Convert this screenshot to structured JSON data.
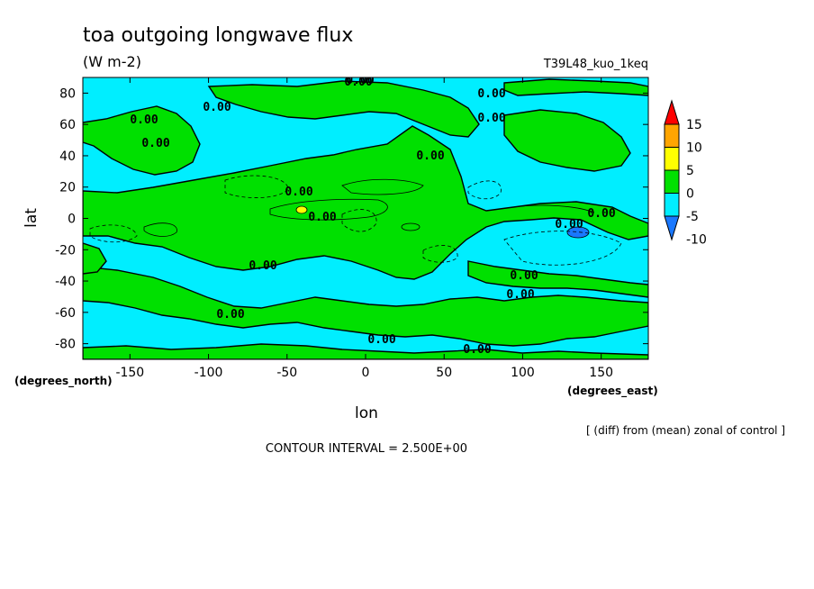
{
  "chart_data": {
    "type": "heatmap",
    "title": "toa outgoing longwave flux",
    "subtitle": "(W m-2)",
    "run_label": "T39L48_kuo_1keq",
    "xlabel": "lon",
    "ylabel": "lat",
    "x_unit_label": "(degrees_east)",
    "y_unit_label": "(degrees_north)",
    "xlim": [
      -180,
      180
    ],
    "ylim": [
      -90,
      90
    ],
    "x_ticks": [
      -150,
      -100,
      -50,
      0,
      50,
      100,
      150
    ],
    "x_tick_labels": [
      "-150",
      "-100",
      "-50",
      "0",
      "50",
      "100",
      "150"
    ],
    "y_ticks": [
      -80,
      -60,
      -40,
      -20,
      0,
      20,
      40,
      60,
      80
    ],
    "y_tick_labels": [
      "-80",
      "-60",
      "-40",
      "-20",
      "0",
      "20",
      "40",
      "60",
      "80"
    ],
    "note": "[ (diff) from (mean) zonal of control ]",
    "contour_interval": "CONTOUR INTERVAL = 2.500E+00",
    "contour_labels": [
      "0.00",
      "0.00",
      "0.00",
      "0.00",
      "0.00",
      "0.00",
      "0.00",
      "0.00",
      "0.00",
      "0.00",
      "0.00",
      "0.00",
      "0.00",
      "0.00",
      "0.00",
      "0.00",
      "0.00",
      "0.00"
    ],
    "colorbar": {
      "levels": [
        -10,
        -5,
        0,
        5,
        10,
        15
      ],
      "level_labels": [
        "-10",
        "-5",
        "0",
        "5",
        "10",
        "15"
      ],
      "colors": [
        "#1a78ff",
        "#00eeff",
        "#00e000",
        "#ffff00",
        "#ffa500",
        "#ff0000"
      ]
    },
    "field": {
      "background_color": "#00eeff",
      "positive_color": "#00e000",
      "strong_positive_color": "#ffff00",
      "strong_negative_color": "#1a78ff"
    }
  }
}
